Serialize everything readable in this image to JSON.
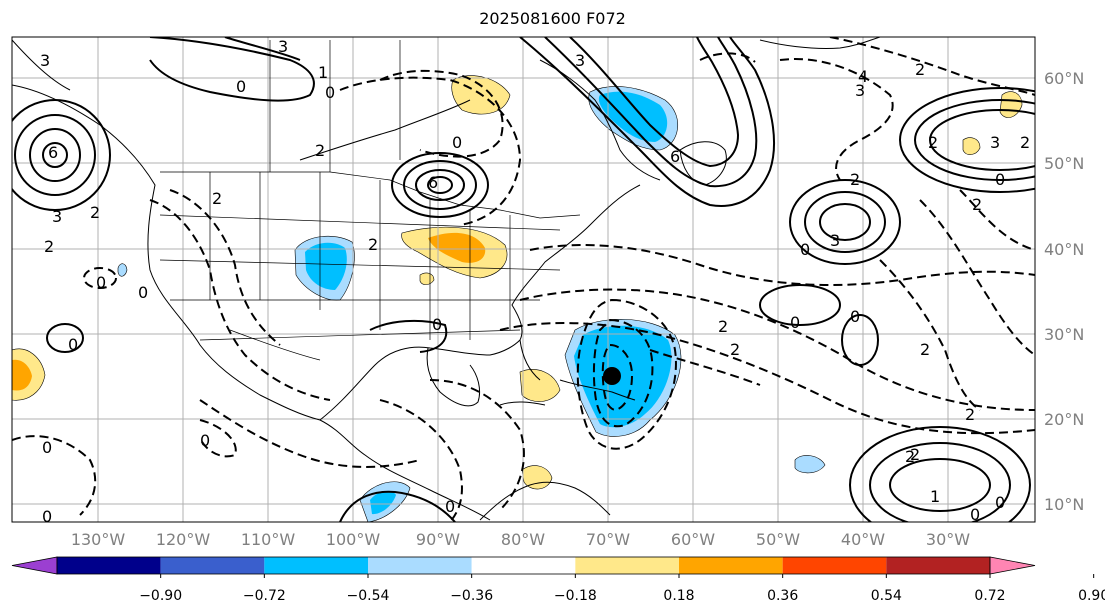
{
  "title": "2025081600 F072",
  "longitude_labels": [
    "130°W",
    "120°W",
    "110°W",
    "100°W",
    "90°W",
    "80°W",
    "70°W",
    "60°W",
    "50°W",
    "40°W",
    "30°W"
  ],
  "latitude_labels": [
    "60°N",
    "50°N",
    "40°N",
    "30°N",
    "20°N",
    "10°N"
  ],
  "colorbar": {
    "ticks": [
      "−0.90",
      "−0.72",
      "−0.54",
      "−0.36",
      "−0.18",
      "0.18",
      "0.36",
      "0.54",
      "0.72",
      "0.90"
    ],
    "colors": [
      "#9b3fd1",
      "#00008b",
      "#3a5fcd",
      "#00bfff",
      "#aadcff",
      "#ffffff",
      "#ffe88a",
      "#ffa500",
      "#ff4500",
      "#b22222",
      "#ff85b3"
    ]
  },
  "contour_labels": [
    "3",
    "6",
    "3",
    "2",
    "0",
    "0",
    "2",
    "3",
    "6",
    "2",
    "2",
    "0",
    "1",
    "0",
    "2",
    "0",
    "0",
    "3",
    "2",
    "2",
    "0",
    "0",
    "0",
    "0",
    "0",
    "2",
    "0",
    "0",
    "0",
    "3",
    "6",
    "4",
    "2",
    "0",
    "2",
    "3",
    "2",
    "1",
    "0",
    "2",
    "2",
    "2",
    "3",
    "2",
    "0",
    "2"
  ],
  "marker": {
    "label": "storm-center"
  }
}
